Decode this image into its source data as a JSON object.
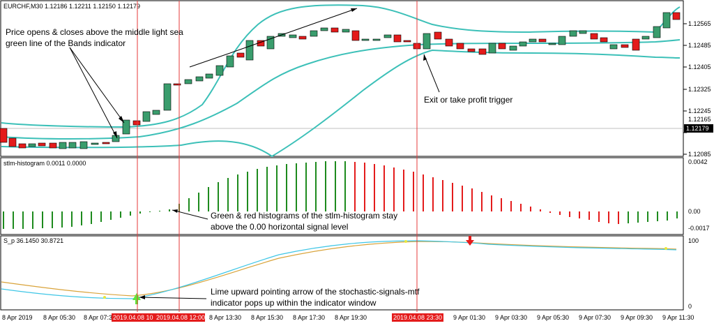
{
  "window": {
    "title": "EURCHF,M30  1.12186 1.12211 1.12150 1.12179"
  },
  "price_axis": {
    "labels": [
      "1.12565",
      "1.12485",
      "1.12405",
      "1.12325",
      "1.12245",
      "1.12165",
      "1.12085"
    ],
    "current_price": "1.12179"
  },
  "histogram_panel": {
    "title": "stlm-histogram 0.0011 0.0000",
    "labels": [
      "0.0042",
      "0.00",
      "-0.0017"
    ]
  },
  "stoch_panel": {
    "title": "S_p 36.1450 30.8721",
    "labels": [
      "100",
      "0"
    ]
  },
  "time_axis": {
    "labels": [
      "8 Apr 2019",
      "8 Apr 05:30",
      "8 Apr 07:30",
      "8 Apr 13:30",
      "8 Apr 15:30",
      "8 Apr 17:30",
      "8 Apr 19:30",
      "9 Apr 01:30",
      "9 Apr 03:30",
      "9 Apr 05:30",
      "9 Apr 07:30",
      "9 Apr 09:30",
      "9 Apr 11:30"
    ],
    "markers": [
      "2019.04.08 10",
      "2019.04.08 12:00",
      "2019.04.08 23:30"
    ]
  },
  "annotations": {
    "price_bands_1": "Price opens & closes above the middle light sea",
    "price_bands_2": "green line of the Bands indicator",
    "exit_trigger": "Exit or take profit trigger",
    "histogram_1": "Green & red histograms of the stlm-histogram stay",
    "histogram_2": "above the 0.00 horizontal signal level",
    "arrow_1": "Lime upward pointing arrow of the stochastic-signals-mtf",
    "arrow_2": "indicator pops up within the indicator window"
  },
  "colors": {
    "bull": "#3a9d6d",
    "bear": "#e41b1b",
    "band": "#3cc0b8",
    "hist_green": "#1d8a1d",
    "hist_red": "#e41b1b",
    "vline": "#e43a3a",
    "stoch_fast": "#3fc6e6",
    "stoch_slow": "#d9a33a"
  }
}
